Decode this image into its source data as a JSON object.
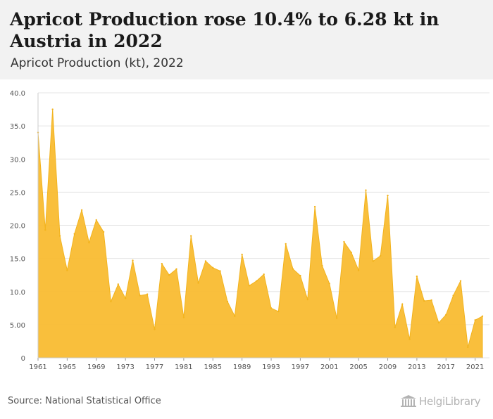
{
  "header": {
    "title": "Apricot Production rose 10.4% to 6.28 kt in Austria in 2022",
    "subtitle": "Apricot Production (kt), 2022"
  },
  "footer": {
    "source": "Source: National Statistical Office",
    "logo_text": "HelgiLibrary"
  },
  "colors": {
    "fill": "#f9bc32",
    "stroke": "#f2b31e",
    "grid": "#e5e5e5",
    "axis_text": "#555555"
  },
  "chart_data": {
    "type": "area",
    "title": "Apricot Production (kt), 2022",
    "xlabel": "",
    "ylabel": "",
    "ylim": [
      0,
      40
    ],
    "yticks": [
      "0",
      "5.00",
      "10.0",
      "15.0",
      "20.0",
      "25.0",
      "30.0",
      "35.0",
      "40.0"
    ],
    "xticks": [
      "1961",
      "1965",
      "1969",
      "1973",
      "1977",
      "1981",
      "1985",
      "1989",
      "1993",
      "1997",
      "2001",
      "2005",
      "2009",
      "2013",
      "2017",
      "2021"
    ],
    "grid": true,
    "x": [
      1961,
      1962,
      1963,
      1964,
      1965,
      1966,
      1967,
      1968,
      1969,
      1970,
      1971,
      1972,
      1973,
      1974,
      1975,
      1976,
      1977,
      1978,
      1979,
      1980,
      1981,
      1982,
      1983,
      1984,
      1985,
      1986,
      1987,
      1988,
      1989,
      1990,
      1991,
      1992,
      1993,
      1994,
      1995,
      1996,
      1997,
      1998,
      1999,
      2000,
      2001,
      2002,
      2003,
      2004,
      2005,
      2006,
      2007,
      2008,
      2009,
      2010,
      2011,
      2012,
      2013,
      2014,
      2015,
      2016,
      2017,
      2018,
      2019,
      2020,
      2021,
      2022
    ],
    "series": [
      {
        "values": [
          34.0,
          19.3,
          37.5,
          18.4,
          13.2,
          18.7,
          22.3,
          17.4,
          20.8,
          19.0,
          8.5,
          11.1,
          9.0,
          14.7,
          9.4,
          9.6,
          4.3,
          14.2,
          12.5,
          13.4,
          6.1,
          18.4,
          11.3,
          14.6,
          13.6,
          13.1,
          8.5,
          6.3,
          15.6,
          10.9,
          11.6,
          12.6,
          7.5,
          7.0,
          17.2,
          13.4,
          12.4,
          8.8,
          22.8,
          13.9,
          11.2,
          6.0,
          17.5,
          15.9,
          13.2,
          25.3,
          14.6,
          15.4,
          24.5,
          4.6,
          8.1,
          2.8,
          12.3,
          8.6,
          8.7,
          5.3,
          6.5,
          9.4,
          11.6,
          1.6,
          5.7,
          6.28
        ]
      }
    ]
  }
}
